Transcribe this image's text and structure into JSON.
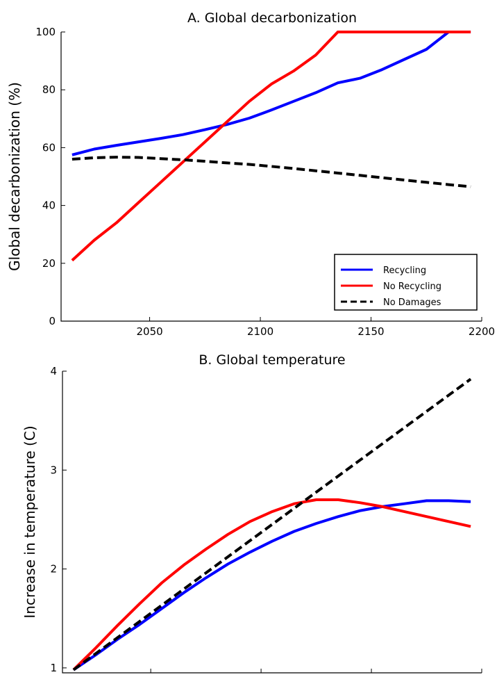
{
  "chart_data": [
    {
      "type": "line",
      "title": "A. Global decarbonization",
      "xlabel": "",
      "ylabel": "Global decarbonization (%)",
      "xlim": [
        2010,
        2200
      ],
      "ylim": [
        0,
        100
      ],
      "xticks": [
        2050,
        2100,
        2150,
        2200
      ],
      "yticks": [
        0,
        20,
        40,
        60,
        80,
        100
      ],
      "grid": false,
      "legend": "lower-right",
      "series": [
        {
          "name": "Recycling",
          "color": "#0000ff",
          "style": "solid",
          "x": [
            2015,
            2025,
            2035,
            2045,
            2055,
            2065,
            2075,
            2085,
            2095,
            2105,
            2115,
            2125,
            2135,
            2145,
            2155,
            2165,
            2175,
            2185,
            2195
          ],
          "y": [
            57.5,
            59.5,
            60.8,
            62,
            63.2,
            64.5,
            66.2,
            68,
            70.2,
            73,
            76,
            79,
            82.4,
            84,
            87,
            90.5,
            94,
            100,
            100
          ]
        },
        {
          "name": "No Recycling",
          "color": "#ff0000",
          "style": "solid",
          "x": [
            2015,
            2025,
            2035,
            2045,
            2055,
            2065,
            2075,
            2085,
            2095,
            2105,
            2115,
            2125,
            2135,
            2145,
            2155,
            2165,
            2175,
            2185,
            2195
          ],
          "y": [
            21,
            28,
            34,
            41,
            48,
            55,
            62,
            69,
            76,
            82,
            86.5,
            92,
            100,
            100,
            100,
            100,
            100,
            100,
            100
          ]
        },
        {
          "name": "No Damages",
          "color": "#000000",
          "style": "dashed",
          "x": [
            2015,
            2025,
            2035,
            2045,
            2055,
            2065,
            2075,
            2085,
            2095,
            2105,
            2115,
            2125,
            2135,
            2145,
            2155,
            2165,
            2175,
            2185,
            2195
          ],
          "y": [
            56,
            56.5,
            56.7,
            56.6,
            56.2,
            55.8,
            55.3,
            54.7,
            54.2,
            53.5,
            52.8,
            52,
            51.2,
            50.4,
            49.6,
            48.8,
            48,
            47.2,
            46.5
          ]
        }
      ]
    },
    {
      "type": "line",
      "title": "B. Global temperature",
      "xlabel": "",
      "ylabel": "Increase in temperature (C)",
      "xlim": [
        2010,
        2200
      ],
      "ylim": [
        0.95,
        4
      ],
      "xticks": [
        2050,
        2100,
        2150,
        2200
      ],
      "yticks": [
        1,
        2,
        3,
        4
      ],
      "grid": false,
      "series": [
        {
          "color": "#0000ff",
          "style": "solid",
          "x": [
            2015,
            2025,
            2035,
            2045,
            2055,
            2065,
            2075,
            2085,
            2095,
            2105,
            2115,
            2125,
            2135,
            2145,
            2155,
            2165,
            2175,
            2185,
            2195
          ],
          "y": [
            0.98,
            1.13,
            1.29,
            1.44,
            1.6,
            1.76,
            1.91,
            2.05,
            2.17,
            2.28,
            2.38,
            2.46,
            2.53,
            2.59,
            2.63,
            2.66,
            2.69,
            2.69,
            2.68
          ]
        },
        {
          "color": "#ff0000",
          "style": "solid",
          "x": [
            2015,
            2025,
            2035,
            2045,
            2055,
            2065,
            2075,
            2085,
            2095,
            2105,
            2115,
            2125,
            2135,
            2145,
            2155,
            2165,
            2175,
            2185,
            2195
          ],
          "y": [
            0.98,
            1.2,
            1.43,
            1.65,
            1.86,
            2.04,
            2.2,
            2.35,
            2.48,
            2.58,
            2.66,
            2.7,
            2.7,
            2.67,
            2.63,
            2.58,
            2.53,
            2.48,
            2.43
          ]
        },
        {
          "color": "#000000",
          "style": "dashed",
          "x": [
            2015,
            2195
          ],
          "y": [
            0.98,
            3.92
          ]
        }
      ]
    }
  ]
}
